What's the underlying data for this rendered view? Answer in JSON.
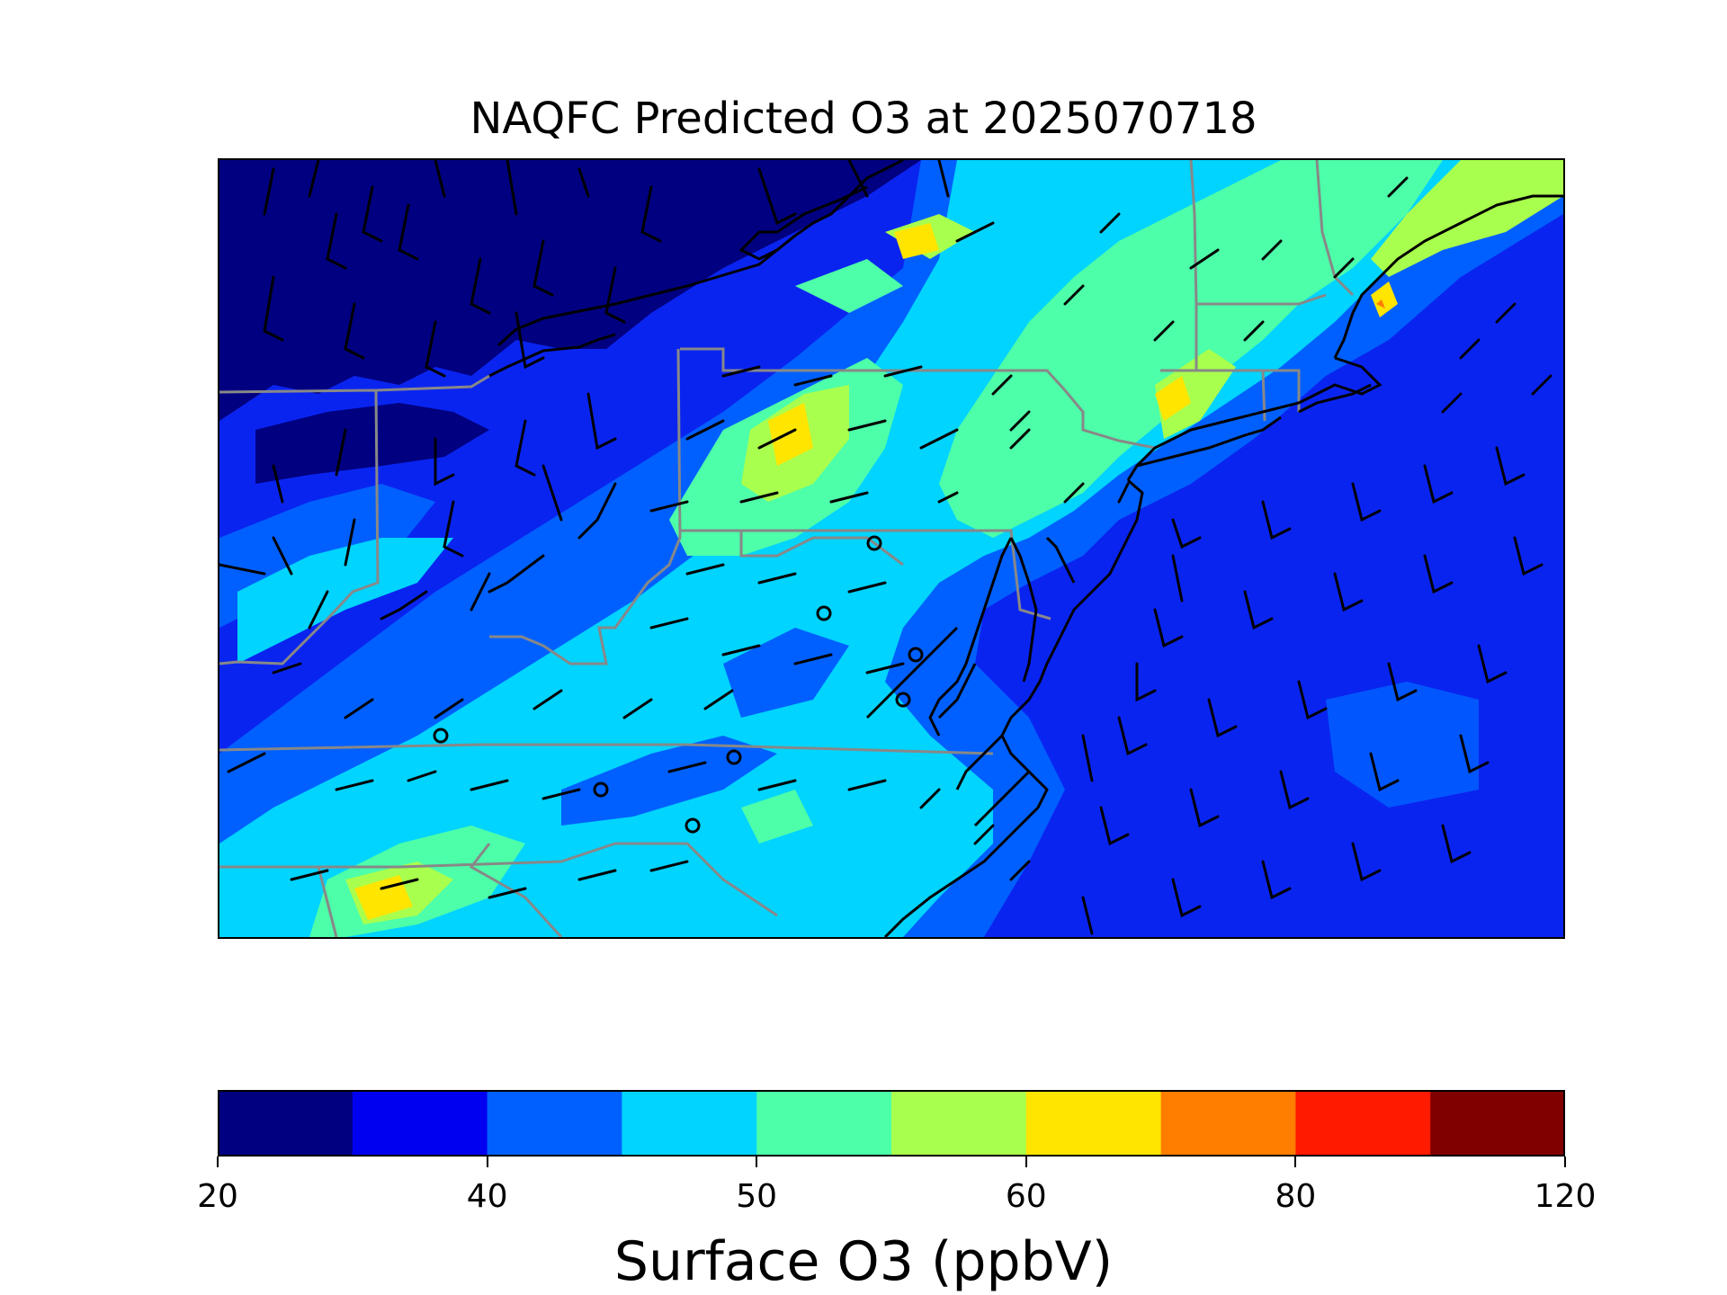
{
  "title": "NAQFC Predicted O3 at 2025070718",
  "colorbar": {
    "label": "Surface O3 (ppbV)",
    "levels": [
      20,
      25,
      40,
      45,
      50,
      55,
      60,
      65,
      80,
      90,
      120
    ],
    "colors": [
      "#000080",
      "#0000f1",
      "#0060ff",
      "#00d4ff",
      "#4dffa9",
      "#a9ff4d",
      "#ffe500",
      "#ff7e00",
      "#ff1a00",
      "#800000"
    ],
    "tick_labels": [
      "20",
      "40",
      "50",
      "60",
      "80",
      "120"
    ]
  },
  "map": {
    "ocean_color": "#0a24f0",
    "state_line_color": "#888888",
    "coast_line_color": "#000000",
    "monitor_sites": 8
  }
}
